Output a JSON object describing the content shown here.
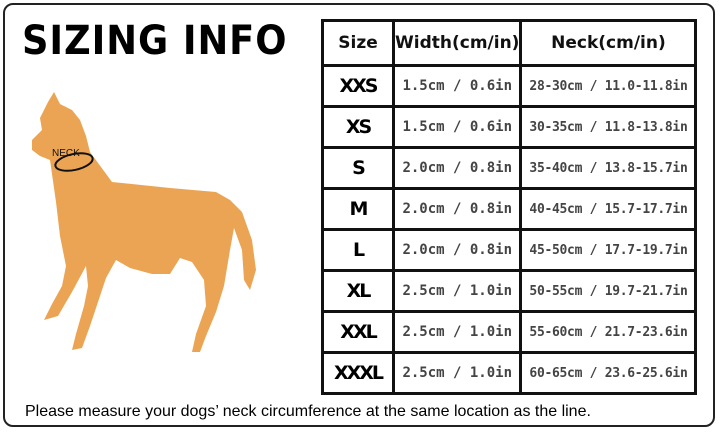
{
  "title": "SIZING INFO",
  "illustration": {
    "neck_label": "NECK",
    "dog_color": "#EBA453"
  },
  "table": {
    "headers": [
      "Size",
      "Width(cm/in)",
      "Neck(cm/in)"
    ],
    "rows": [
      {
        "size": "XXS",
        "width": "1.5cm / 0.6in",
        "neck": "28-30cm / 11.0-11.8in"
      },
      {
        "size": "XS",
        "width": "1.5cm / 0.6in",
        "neck": "30-35cm / 11.8-13.8in"
      },
      {
        "size": "S",
        "width": "2.0cm / 0.8in",
        "neck": "35-40cm / 13.8-15.7in"
      },
      {
        "size": "M",
        "width": "2.0cm / 0.8in",
        "neck": "40-45cm / 15.7-17.7in"
      },
      {
        "size": "L",
        "width": "2.0cm / 0.8in",
        "neck": "45-50cm / 17.7-19.7in"
      },
      {
        "size": "XL",
        "width": "2.5cm / 1.0in",
        "neck": "50-55cm / 19.7-21.7in"
      },
      {
        "size": "XXL",
        "width": "2.5cm / 1.0in",
        "neck": "55-60cm / 21.7-23.6in"
      },
      {
        "size": "XXXL",
        "width": "2.5cm / 1.0in",
        "neck": "60-65cm / 23.6-25.6in"
      }
    ]
  },
  "footer": "Please measure your dogs’  neck circumference at the same location as the line."
}
